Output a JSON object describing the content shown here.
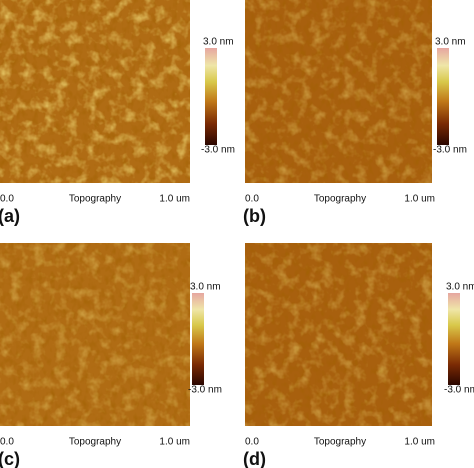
{
  "panels": [
    {
      "label": "(a)",
      "scale_max": "3.0 nm",
      "scale_min": "-3.0 nm",
      "x_start": "0.0",
      "x_title": "Topography",
      "x_end": "1.0 um"
    },
    {
      "label": "(b)",
      "scale_max": "3.0 nm",
      "scale_min": "-3.0 nm",
      "x_start": "0.0",
      "x_title": "Topography",
      "x_end": "1.0 um"
    },
    {
      "label": "(c)",
      "scale_max": "3.0 nm",
      "scale_min": "-3.0 nm",
      "x_start": "0.0",
      "x_title": "Topography",
      "x_end": "1.0 um"
    },
    {
      "label": "(d)",
      "scale_max": "3.0 nm",
      "scale_min": "-3.0 nm",
      "x_start": "0.0",
      "x_title": "Topography",
      "x_end": "1.0 um"
    }
  ]
}
